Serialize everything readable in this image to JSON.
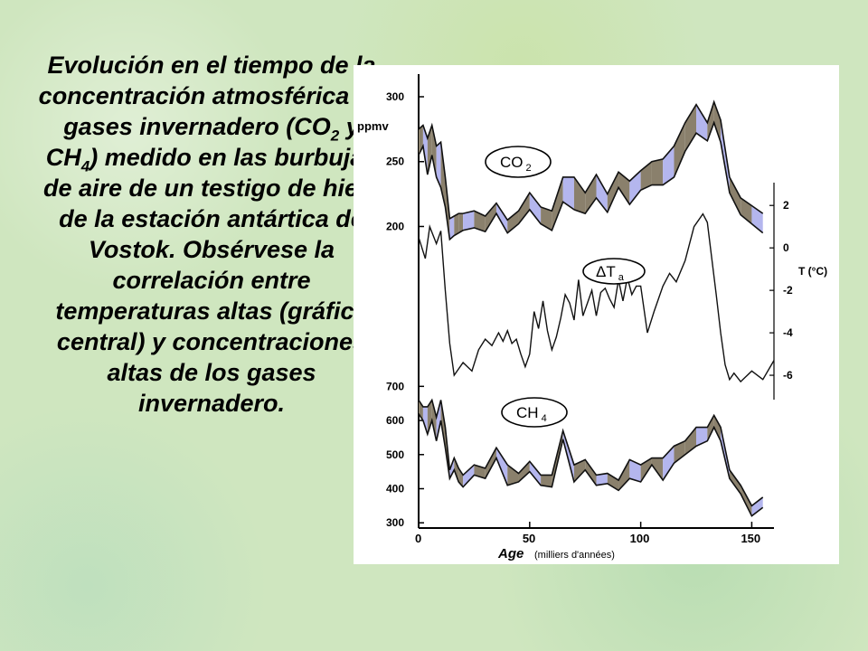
{
  "caption": {
    "line1": "Evolución en el tiempo de la concentración atmosférica de gases invernadero (CO",
    "sub1": "2",
    "line2": " y CH",
    "sub2": "4",
    "line3": ") medido en las burbujas de aire de un testigo de hielo de la estación antártica de Vostok. Obsérvese la correlación entre temperaturas altas (gráfica central) y concentraciones altas de los gases invernadero."
  },
  "colors": {
    "band_brown": "#8a806c",
    "band_lavender": "#b4b6ee",
    "line": "#111111"
  },
  "chart_data": {
    "type": "line",
    "xlabel": "Age",
    "xlabel_note": "(milliers d'années)",
    "xticks": [
      0,
      50,
      100,
      150
    ],
    "xlim": [
      0,
      160
    ],
    "panels": [
      {
        "name": "co2",
        "label": "CO",
        "label_sub": "2",
        "unit": "ppmv",
        "yticks": [
          200,
          250,
          300
        ],
        "ylim": [
          185,
          300
        ],
        "x": [
          0,
          2,
          4,
          6,
          8,
          10,
          12,
          14,
          16,
          18,
          20,
          25,
          30,
          35,
          40,
          45,
          50,
          55,
          60,
          65,
          70,
          75,
          80,
          85,
          90,
          95,
          100,
          105,
          110,
          115,
          120,
          125,
          130,
          133,
          136,
          140,
          145,
          150,
          155
        ],
        "lower": [
          255,
          262,
          240,
          255,
          238,
          230,
          215,
          190,
          193,
          195,
          197,
          199,
          196,
          210,
          195,
          202,
          213,
          202,
          197,
          219,
          213,
          210,
          222,
          211,
          230,
          217,
          228,
          232,
          232,
          238,
          258,
          272,
          266,
          280,
          265,
          226,
          209,
          202,
          195
        ],
        "upper": [
          275,
          278,
          268,
          278,
          262,
          265,
          238,
          206,
          208,
          210,
          210,
          212,
          208,
          218,
          205,
          212,
          226,
          215,
          212,
          238,
          238,
          226,
          240,
          225,
          242,
          235,
          243,
          250,
          252,
          262,
          280,
          294,
          280,
          296,
          282,
          238,
          222,
          216,
          210
        ]
      },
      {
        "name": "temperature",
        "label": "ΔT",
        "label_sub": "a",
        "unit": "T (°C)",
        "yticks": [
          -6,
          -4,
          -2,
          0,
          2
        ],
        "ylim": [
          -8,
          3.5
        ],
        "x": [
          0,
          3,
          5,
          8,
          10,
          12,
          14,
          16,
          20,
          24,
          27,
          30,
          33,
          36,
          38,
          40,
          42,
          44,
          46,
          48,
          50,
          52,
          54,
          56,
          58,
          60,
          62,
          64,
          66,
          68,
          70,
          72,
          74,
          76,
          78,
          80,
          82,
          84,
          86,
          88,
          90,
          92,
          94,
          96,
          98,
          100,
          103,
          106,
          110,
          113,
          116,
          120,
          124,
          128,
          130,
          132,
          134,
          136,
          138,
          140,
          142,
          145,
          150,
          155,
          160
        ],
        "values": [
          0.5,
          -0.5,
          1,
          0.2,
          0.8,
          -2,
          -4.5,
          -6,
          -5.4,
          -5.8,
          -4.8,
          -4.3,
          -4.6,
          -4,
          -4.4,
          -3.9,
          -4.5,
          -4.3,
          -5,
          -5.6,
          -5,
          -3,
          -3.8,
          -2.5,
          -3.9,
          -4.8,
          -4.2,
          -3.3,
          -2.2,
          -2.6,
          -3.4,
          -1.5,
          -3.2,
          -2.6,
          -2,
          -3.2,
          -2.1,
          -1.9,
          -2.4,
          -2.8,
          -1.5,
          -2.5,
          -1.4,
          -2.2,
          -1.8,
          -1.8,
          -4,
          -3,
          -1.8,
          -1.2,
          -1.6,
          -0.6,
          1,
          1.6,
          1.2,
          -0.5,
          -2.2,
          -4,
          -5.5,
          -6.2,
          -5.9,
          -6.3,
          -5.8,
          -6.2,
          -5.3
        ]
      },
      {
        "name": "ch4",
        "label": "CH",
        "label_sub": "4",
        "unit": "",
        "yticks": [
          300,
          400,
          500,
          600,
          700
        ],
        "ylim": [
          290,
          730
        ],
        "x": [
          0,
          2,
          4,
          6,
          8,
          10,
          12,
          14,
          16,
          18,
          20,
          25,
          30,
          35,
          40,
          45,
          50,
          55,
          60,
          65,
          70,
          75,
          80,
          85,
          90,
          95,
          100,
          105,
          110,
          115,
          120,
          125,
          130,
          133,
          136,
          140,
          145,
          150,
          155
        ],
        "lower": [
          620,
          600,
          560,
          600,
          540,
          600,
          520,
          430,
          455,
          420,
          405,
          440,
          430,
          490,
          410,
          420,
          450,
          410,
          405,
          545,
          420,
          455,
          410,
          415,
          395,
          430,
          420,
          470,
          425,
          475,
          500,
          525,
          540,
          580,
          540,
          430,
          385,
          320,
          345
        ],
        "upper": [
          660,
          640,
          640,
          660,
          610,
          660,
          580,
          455,
          490,
          460,
          440,
          470,
          460,
          520,
          470,
          445,
          480,
          440,
          440,
          570,
          470,
          485,
          440,
          445,
          425,
          485,
          470,
          490,
          490,
          525,
          540,
          580,
          580,
          615,
          580,
          455,
          410,
          350,
          375
        ]
      }
    ]
  }
}
